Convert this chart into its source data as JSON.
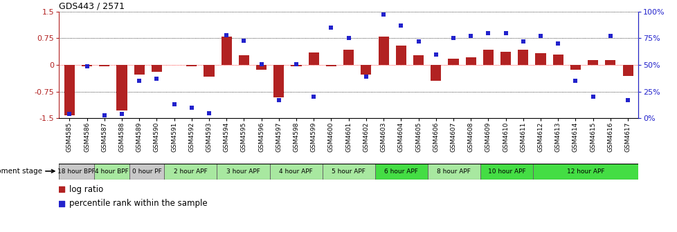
{
  "title": "GDS443 / 2571",
  "samples": [
    "GSM4585",
    "GSM4586",
    "GSM4587",
    "GSM4588",
    "GSM4589",
    "GSM4590",
    "GSM4591",
    "GSM4592",
    "GSM4593",
    "GSM4594",
    "GSM4595",
    "GSM4596",
    "GSM4597",
    "GSM4598",
    "GSM4599",
    "GSM4600",
    "GSM4601",
    "GSM4602",
    "GSM4603",
    "GSM4604",
    "GSM4605",
    "GSM4606",
    "GSM4607",
    "GSM4608",
    "GSM4609",
    "GSM4610",
    "GSM4611",
    "GSM4612",
    "GSM4613",
    "GSM4614",
    "GSM4615",
    "GSM4616",
    "GSM4617"
  ],
  "log_ratio": [
    -1.42,
    -0.04,
    -0.03,
    -1.28,
    -0.27,
    -0.2,
    0.01,
    -0.04,
    -0.32,
    0.8,
    0.28,
    -0.13,
    -0.92,
    -0.04,
    0.35,
    -0.04,
    0.42,
    -0.27,
    0.8,
    0.55,
    0.27,
    -0.45,
    0.18,
    0.22,
    0.42,
    0.38,
    0.43,
    0.33,
    0.3,
    -0.13,
    0.13,
    0.13,
    -0.3
  ],
  "percentile": [
    4,
    49,
    3,
    4,
    35,
    37,
    13,
    10,
    5,
    78,
    73,
    51,
    17,
    51,
    20,
    85,
    75,
    39,
    97,
    87,
    72,
    60,
    75,
    77,
    80,
    80,
    72,
    77,
    70,
    35,
    20,
    77,
    17
  ],
  "stages": [
    {
      "label": "18 hour BPF",
      "start": 0,
      "end": 2,
      "color": "#c8c8c8"
    },
    {
      "label": "4 hour BPF",
      "start": 2,
      "end": 4,
      "color": "#a8e8a0"
    },
    {
      "label": "0 hour PF",
      "start": 4,
      "end": 6,
      "color": "#c8c8c8"
    },
    {
      "label": "2 hour APF",
      "start": 6,
      "end": 9,
      "color": "#a8e8a0"
    },
    {
      "label": "3 hour APF",
      "start": 9,
      "end": 12,
      "color": "#a8e8a0"
    },
    {
      "label": "4 hour APF",
      "start": 12,
      "end": 15,
      "color": "#a8e8a0"
    },
    {
      "label": "5 hour APF",
      "start": 15,
      "end": 18,
      "color": "#a8e8a0"
    },
    {
      "label": "6 hour APF",
      "start": 18,
      "end": 21,
      "color": "#44dd44"
    },
    {
      "label": "8 hour APF",
      "start": 21,
      "end": 24,
      "color": "#a8e8a0"
    },
    {
      "label": "10 hour APF",
      "start": 24,
      "end": 27,
      "color": "#44dd44"
    },
    {
      "label": "12 hour APF",
      "start": 27,
      "end": 33,
      "color": "#44dd44"
    }
  ],
  "bar_color": "#b22222",
  "dot_color": "#2222cc",
  "ylim_left": [
    -1.5,
    1.5
  ],
  "ylim_right": [
    0,
    100
  ],
  "yticks_left": [
    -1.5,
    -0.75,
    0.0,
    0.75,
    1.5
  ],
  "ytick_labels_left": [
    "-1.5",
    "-0.75",
    "0",
    "0.75",
    "1.5"
  ],
  "yticks_right": [
    0,
    25,
    50,
    75,
    100
  ],
  "ytick_labels_right": [
    "0%",
    "25%",
    "50%",
    "75%",
    "100%"
  ],
  "legend_log_ratio": "log ratio",
  "legend_percentile": "percentile rank within the sample",
  "dev_stage_label": "development stage",
  "plot_bg": "#ffffff"
}
